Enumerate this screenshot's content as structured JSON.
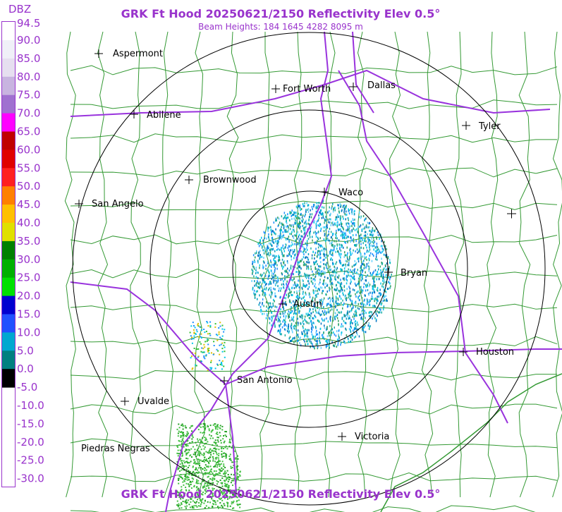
{
  "header": {
    "title": "GRK Ft Hood 20250621/2150 Reflectivity Elev 0.5°",
    "subtitle": "Beam Heights: 184 1645 4282 8095 m",
    "footer_title": "GRK Ft Hood 20250621/2150 Reflectivity Elev 0.5°"
  },
  "legend": {
    "unit": "DBZ",
    "labels": [
      "94.5",
      "90.0",
      "85.0",
      "80.0",
      "75.0",
      "70.0",
      "65.0",
      "60.0",
      "55.0",
      "50.0",
      "45.0",
      "40.0",
      "35.0",
      "30.0",
      "25.0",
      "20.0",
      "15.0",
      "10.0",
      "5.0",
      "0.0",
      "-5.0",
      "-10.0",
      "-15.0",
      "-20.0",
      "-25.0",
      "-30.0"
    ]
  },
  "cities": [
    "Aspermont",
    "Fort Worth",
    "Dallas",
    "Abilene",
    "Tyler",
    "Brownwood",
    "Waco",
    "San Angelo",
    "Bryan",
    "Austin",
    "Houston",
    "San Antonio",
    "Uvalde",
    "Victoria",
    "Piedras Negras"
  ]
}
